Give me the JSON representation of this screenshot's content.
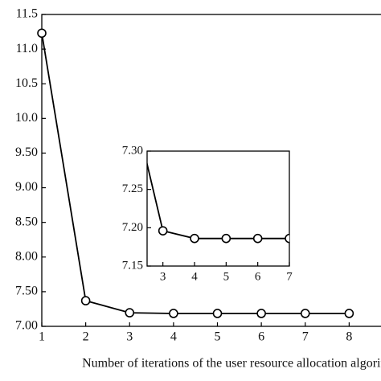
{
  "chart_data": [
    {
      "type": "line",
      "x_label": "Number of iterations of the user resource allocation algorit",
      "x": [
        1,
        2,
        3,
        4,
        5,
        6,
        7,
        8
      ],
      "series": [
        {
          "color": "#000000",
          "values": [
            11.23,
            7.37,
            7.196,
            7.186,
            7.186,
            7.186,
            7.186,
            7.186
          ]
        }
      ],
      "xlim": [
        1,
        9
      ],
      "xticks": [
        1,
        2,
        3,
        4,
        5,
        6,
        7,
        8
      ],
      "ylim": [
        7.0,
        11.5
      ],
      "yticks": [
        {
          "value": 7.0,
          "label": "7.00"
        },
        {
          "value": 7.5,
          "label": "7.50"
        },
        {
          "value": 8.0,
          "label": "8.00"
        },
        {
          "value": 8.5,
          "label": "8.50"
        },
        {
          "value": 9.0,
          "label": "9.00"
        },
        {
          "value": 9.5,
          "label": "9.50"
        },
        {
          "value": 10.0,
          "label": "10.0"
        },
        10.5,
        {
          "value": 11.0,
          "label": "11.0"
        },
        11.5
      ]
    },
    {
      "type": "line",
      "x": [
        2,
        3,
        4,
        5,
        6,
        7
      ],
      "series": [
        {
          "color": "#000000",
          "values": [
            7.37,
            7.196,
            7.186,
            7.186,
            7.186,
            7.186
          ]
        }
      ],
      "xlim": [
        2.5,
        7
      ],
      "xticks": [
        3,
        4,
        5,
        6,
        7
      ],
      "ylim": [
        7.15,
        7.3
      ],
      "yticks": [
        7.15,
        {
          "value": 7.2,
          "label": "7.20"
        },
        7.25,
        {
          "value": 7.3,
          "label": "7.30"
        }
      ]
    }
  ]
}
